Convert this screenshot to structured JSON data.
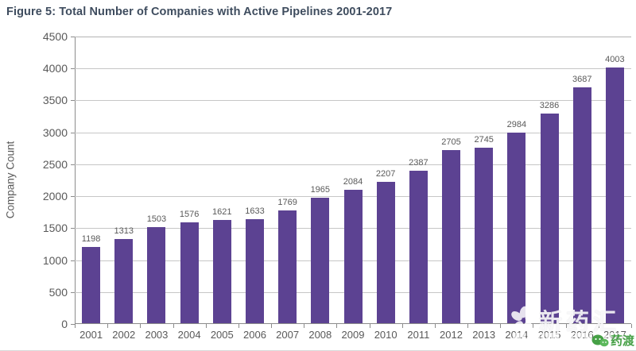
{
  "chart_data": {
    "type": "bar",
    "title": "Figure 5: Total Number of Companies with Active Pipelines 2001-2017",
    "categories": [
      "2001",
      "2002",
      "2003",
      "2004",
      "2005",
      "2006",
      "2007",
      "2008",
      "2009",
      "2010",
      "2011",
      "2012",
      "2013",
      "2014",
      "2015",
      "2016",
      "2017"
    ],
    "values": [
      1198,
      1313,
      1503,
      1576,
      1621,
      1633,
      1769,
      1965,
      2084,
      2207,
      2387,
      2705,
      2745,
      2984,
      3286,
      3687,
      4003
    ],
    "xlabel": "",
    "ylabel": "Company Count",
    "ylim": [
      0,
      4500
    ],
    "ytick_step": 500,
    "grid": true,
    "legend": false,
    "bar_color": "#5c4292",
    "data_labels": true
  },
  "colors": {
    "title": "#3e4c5e",
    "axis_label": "#595959",
    "gridline": "#c6c6c6",
    "axis_line": "#8c8c8c",
    "bar": "#5c4292",
    "watermark_green": "#46a046",
    "watermark_white": "#ffffff"
  },
  "watermarks": {
    "logo_text": "新药汇",
    "badge_text": "药渡"
  }
}
